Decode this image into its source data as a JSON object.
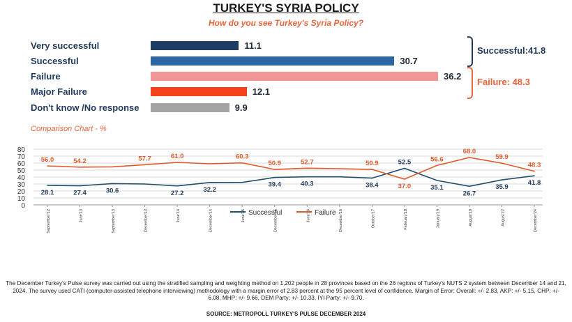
{
  "title": "TURKEY'S SYRIA POLICY",
  "subtitle": "How do you see Turkey's Syria Policy?",
  "summary": {
    "successful": "Successful:41.8",
    "failure": "Failure: 48.3",
    "successful_color": "#1f3a5a",
    "failure_color": "#e8643a"
  },
  "comparison_title": "Comparison Chart - %",
  "chart_data": [
    {
      "type": "bar",
      "orientation": "horizontal",
      "categories": [
        "Very successful",
        "Successful",
        "Failure",
        "Major Failure",
        "Don't know /No response"
      ],
      "values": [
        11.1,
        30.7,
        36.2,
        12.1,
        9.9
      ],
      "value_labels": [
        "11.1",
        "30.7",
        "36.2",
        "12.1",
        "9.9"
      ],
      "colors": [
        "#1d3d63",
        "#2c66a3",
        "#f09697",
        "#f5411a",
        "#a4a4a4"
      ],
      "xlim": [
        0,
        36.2
      ]
    },
    {
      "type": "line",
      "categories": [
        "September'12",
        "June'13",
        "September'13",
        "December'13",
        "June'14",
        "December'14",
        "June'15",
        "December'15",
        "June'16",
        "December'16",
        "October'17",
        "February'18",
        "January'19",
        "August'19",
        "August'22",
        "December'24"
      ],
      "ylim": [
        0,
        80
      ],
      "yticks": [
        "0",
        "10",
        "20",
        "30",
        "40",
        "50",
        "60",
        "70",
        "80"
      ],
      "grid": true,
      "legend_position": "center",
      "series": [
        {
          "name": "Successful",
          "color": "#1f4e6e",
          "values": [
            28.1,
            27.4,
            30.6,
            30.0,
            27.2,
            32.2,
            32.3,
            39.4,
            40.3,
            40.3,
            38.4,
            52.5,
            35.1,
            26.7,
            35.9,
            41.8
          ],
          "labels": [
            "28.1",
            "27.4",
            "30.6",
            "",
            "27.2",
            "32.2",
            "",
            "39.4",
            "40.3",
            "",
            "38.4",
            "52.5",
            "35.1",
            "26.7",
            "35.9",
            "41.8"
          ]
        },
        {
          "name": "Failure",
          "color": "#e05a2a",
          "values": [
            56.0,
            54.2,
            54.6,
            57.7,
            61.0,
            59.0,
            60.3,
            50.9,
            52.7,
            52.0,
            50.9,
            37.0,
            56.6,
            68.0,
            59.9,
            48.3
          ],
          "labels": [
            "56.0",
            "54.2",
            "",
            "57.7",
            "61.0",
            "",
            "60.3",
            "50.9",
            "52.7",
            "",
            "50.9",
            "37.0",
            "56.6",
            "68.0",
            "59.9",
            "48.3"
          ]
        }
      ]
    }
  ],
  "footnote": "The December Turkey's Pulse survey was carried out using the stratified sampling and weighting method on 1,202 people in 28 provinces based on the 26 regions of Turkey's NUTS 2 system between December 14 and 21, 2024. The survey used CATI (computer-assisted telephone interviewing) methodology with a margin error of 2.83 percent at the 95 percent level of confidence. Margin of Error: Overall: +/- 2.83, AKP: +/- 5.15, CHP: +/- 6.08, MHP: +/- 9.66, DEM Party: +/- 10.33, IYI Party: +/- 9.70.",
  "source": "SOURCE: METROPOLL TURKEY'S PULSE DECEMBER 2024"
}
